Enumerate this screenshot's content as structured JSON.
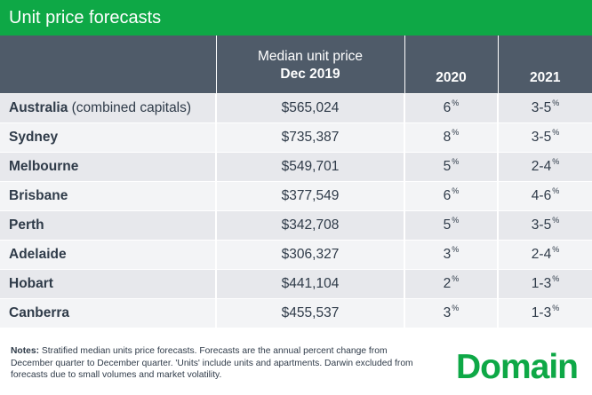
{
  "title": "Unit price forecasts",
  "header": {
    "median_line1": "Median unit price",
    "median_line2": "Dec 2019",
    "col_2020": "2020",
    "col_2021": "2021"
  },
  "rows": [
    {
      "city": "Australia",
      "city_suffix": " (combined capitals)",
      "median": "$565,024",
      "y2020": "6",
      "y2021": "3-5"
    },
    {
      "city": "Sydney",
      "city_suffix": "",
      "median": "$735,387",
      "y2020": "8",
      "y2021": "3-5"
    },
    {
      "city": "Melbourne",
      "city_suffix": "",
      "median": "$549,701",
      "y2020": "5",
      "y2021": "2-4"
    },
    {
      "city": "Brisbane",
      "city_suffix": "",
      "median": "$377,549",
      "y2020": "6",
      "y2021": "4-6"
    },
    {
      "city": "Perth",
      "city_suffix": "",
      "median": "$342,708",
      "y2020": "5",
      "y2021": "3-5"
    },
    {
      "city": "Adelaide",
      "city_suffix": "",
      "median": "$306,327",
      "y2020": "3",
      "y2021": "2-4"
    },
    {
      "city": "Hobart",
      "city_suffix": "",
      "median": "$441,104",
      "y2020": "2",
      "y2021": "1-3"
    },
    {
      "city": "Canberra",
      "city_suffix": "",
      "median": "$455,537",
      "y2020": "3",
      "y2021": "1-3"
    }
  ],
  "percent_symbol": "%",
  "notes": {
    "label": "Notes:",
    "text": " Stratified median units price forecasts. Forecasts are the annual percent change from December quarter to December quarter. 'Units' include units and apartments. Darwin excluded from forecasts due to small volumes and market volatility."
  },
  "logo": "Domain",
  "colors": {
    "brand_green": "#0ea846",
    "header_bg": "#4f5b69",
    "row_dark": "#e7e8ec",
    "row_light": "#f3f4f6"
  }
}
